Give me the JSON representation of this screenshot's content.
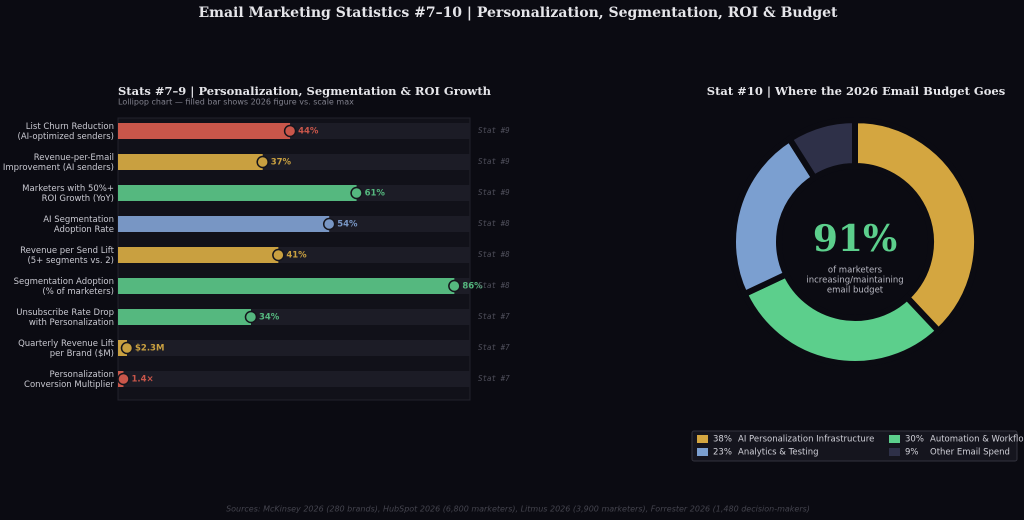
{
  "title": "Email Marketing Statistics #7–10  |  Personalization, Segmentation, ROI & Budget",
  "footer": "Sources: McKinsey 2026 (280 brands), HubSpot 2026 (6,800 marketers), Litmus 2026 (3,900 marketers), Forrester 2026 (1,480 decision-makers)",
  "chart_data": [
    {
      "type": "lollipop",
      "title": "Stats #7–9  |  Personalization, Segmentation & ROI Growth",
      "subtitle": "Lollipop chart — filled bar shows 2026 figure vs. scale max",
      "categories": [
        [
          "List Churn Reduction",
          "(AI-optimized senders)"
        ],
        [
          "Revenue-per-Email",
          "Improvement (AI senders)"
        ],
        [
          "Marketers with 50%+",
          "ROI Growth (YoY)"
        ],
        [
          "AI Segmentation",
          "Adoption Rate"
        ],
        [
          "Revenue per Send Lift",
          "(5+ segments vs. 2)"
        ],
        [
          "Segmentation Adoption",
          "(% of marketers)"
        ],
        [
          "Unsubscribe Rate Drop",
          "with Personalization"
        ],
        [
          "Quarterly Revenue Lift",
          "per Brand ($M)"
        ],
        [
          "Personalization",
          "Conversion Multiplier"
        ]
      ],
      "values": [
        44,
        37,
        61,
        54,
        41,
        86,
        34,
        2.3,
        1.4
      ],
      "value_labels": [
        "44%",
        "37%",
        "61%",
        "54%",
        "41%",
        "86%",
        "34%",
        "$2.3M",
        "1.4×"
      ],
      "tags": [
        "Stat #9",
        "Stat #9",
        "Stat #9",
        "Stat #8",
        "Stat #8",
        "Stat #8",
        "Stat #7",
        "Stat #7",
        "Stat #7"
      ],
      "colors": [
        "#c9564a",
        "#c9a040",
        "#55b87f",
        "#7896c4",
        "#c9a040",
        "#55b87f",
        "#55b87f",
        "#c9a040",
        "#c9564a"
      ],
      "xlim": [
        0,
        90
      ]
    },
    {
      "type": "donut",
      "title": "Stat #10  |  Where the 2026 Email Budget Goes",
      "center_text": "91%",
      "center_caption": [
        "of marketers",
        "increasing/maintaining",
        "email budget"
      ],
      "categories": [
        "AI Personalization Infrastructure",
        "Automation & Workflow Tools",
        "Analytics & Testing",
        "Other Email Spend"
      ],
      "values": [
        38,
        30,
        23,
        9
      ],
      "value_labels": [
        "38%",
        "30%",
        "23%",
        "9%"
      ],
      "colors": [
        "#d4a640",
        "#5ccf8c",
        "#7b9fd0",
        "#2e3048"
      ]
    }
  ]
}
